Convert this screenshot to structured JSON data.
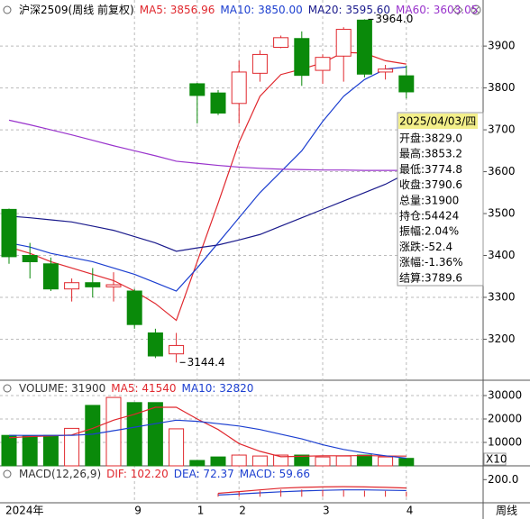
{
  "chart_data": [
    {
      "type": "candlestick",
      "title": "沪深2509(周线 前复权)",
      "categories": [
        "2024年",
        null,
        null,
        null,
        null,
        null,
        "9",
        null,
        null,
        "1",
        null,
        "2",
        null,
        null,
        null,
        "3",
        null,
        null,
        null,
        "4"
      ],
      "x_axis_label": "周线",
      "open": [
        3510,
        3400,
        3380,
        3320,
        3335,
        3325,
        3315,
        3215,
        3165,
        3810,
        3788,
        3763,
        3835,
        3897,
        3918,
        3842,
        3876,
        3962,
        3838,
        3829.0
      ],
      "high": [
        3512,
        3430,
        3395,
        3345,
        3370,
        3360,
        3320,
        3225,
        3215,
        3812,
        3795,
        3865,
        3890,
        3925,
        3935,
        3880,
        3945,
        3964.0,
        3855,
        3853.2
      ],
      "low": [
        3380,
        3345,
        3315,
        3290,
        3300,
        3290,
        3225,
        3155,
        3144.4,
        3715,
        3735,
        3715,
        3815,
        3895,
        3805,
        3810,
        3815,
        3825,
        3820,
        3774.8
      ],
      "close": [
        3397,
        3385,
        3320,
        3335,
        3325,
        3330,
        3235,
        3160,
        3185,
        3782,
        3740,
        3838,
        3880,
        3920,
        3830,
        3873,
        3940,
        3833,
        3845,
        3790.6
      ],
      "up_color": "#e0282e",
      "down_color": "#0a8a0a",
      "series": [
        {
          "name": "MA5",
          "legend_label": "MA5: 3856.96",
          "color": "#e0282e",
          "values": [
            3420,
            3405,
            3385,
            3370,
            3355,
            3340,
            3315,
            3285,
            3245,
            3385,
            3525,
            3670,
            3780,
            3832,
            3845,
            3860,
            3885,
            3883,
            3865,
            3856.96
          ]
        },
        {
          "name": "MA10",
          "legend_label": "MA10: 3850.00",
          "color": "#1c3fd0",
          "values": [
            3430,
            3420,
            3405,
            3395,
            3385,
            3370,
            3355,
            3335,
            3315,
            3370,
            3430,
            3490,
            3550,
            3600,
            3650,
            3720,
            3780,
            3820,
            3845,
            3850.0
          ]
        },
        {
          "name": "MA20",
          "legend_label": "MA20: 3595.60",
          "color": "#1a1a8c",
          "values": [
            3494,
            3490,
            3485,
            3480,
            3470,
            3460,
            3445,
            3430,
            3410,
            3418,
            3425,
            3437,
            3450,
            3470,
            3490,
            3510,
            3530,
            3550,
            3570,
            3595.6
          ]
        },
        {
          "name": "MA60",
          "legend_label": "MA60: 3603.05",
          "color": "#9933cc",
          "values": [
            3723,
            3712,
            3700,
            3688,
            3675,
            3662,
            3650,
            3638,
            3625,
            3620,
            3615,
            3611,
            3608,
            3606,
            3605,
            3604,
            3604,
            3603,
            3603,
            3603.05
          ]
        }
      ],
      "ylim": [
        3102,
        4010
      ],
      "yticks": [
        3200,
        3300,
        3400,
        3500,
        3600,
        3700,
        3800,
        3900
      ],
      "grid": true,
      "annotations": [
        {
          "text": "3964.0",
          "index": 17,
          "value": 3964.0
        },
        {
          "text": "3144.4",
          "index": 8,
          "value": 3144.4
        }
      ],
      "tooltip": {
        "title": "2025/04/03/四",
        "rows": [
          "开盘:3829.0",
          "最高:3853.2",
          "最低:3774.8",
          "收盘:3790.6",
          "总量:31900",
          "持仓:54424",
          "振幅:2.04%",
          "涨跌:-52.4",
          "涨幅:-1.36%",
          "结算:3789.6"
        ]
      }
    },
    {
      "type": "bar",
      "title": "VOLUME: 31900",
      "multiplier_label": "X10",
      "values": [
        13000,
        12700,
        13000,
        16000,
        25800,
        29200,
        27000,
        27000,
        15800,
        2300,
        3800,
        4600,
        4200,
        4600,
        4600,
        3800,
        4200,
        4600,
        3800,
        3190
      ],
      "series": [
        {
          "name": "MA5",
          "legend_label": "MA5: 41540",
          "color": "#e0282e",
          "values": [
            12000,
            12500,
            12800,
            13200,
            16000,
            19500,
            22000,
            25000,
            25000,
            20000,
            15500,
            9500,
            6200,
            3900,
            4100,
            4300,
            4300,
            4400,
            4200,
            4154
          ]
        },
        {
          "name": "MA10",
          "legend_label": "MA10: 32820",
          "color": "#1c3fd0",
          "values": [
            13000,
            13000,
            13000,
            13000,
            13500,
            15000,
            16500,
            18000,
            19500,
            19000,
            18000,
            17000,
            15500,
            13500,
            11500,
            9000,
            7000,
            5500,
            4300,
            3282
          ]
        }
      ],
      "ylim": [
        0,
        35770
      ],
      "yticks": [
        10000,
        20000,
        30000
      ],
      "grid": true
    },
    {
      "type": "macd",
      "title": "MACD(12,26,9)",
      "series": [
        {
          "name": "DIF",
          "legend_label": "DIF: 102.20",
          "color": "#e0282e",
          "values": [
            null,
            null,
            null,
            null,
            null,
            null,
            null,
            null,
            null,
            null,
            40,
            60,
            80,
            100,
            110,
            115,
            118,
            115,
            110,
            102.2
          ]
        },
        {
          "name": "DEA",
          "legend_label": "DEA: 72.37",
          "color": "#1c3fd0",
          "values": [
            null,
            null,
            null,
            null,
            null,
            null,
            null,
            null,
            null,
            null,
            20,
            32,
            45,
            58,
            68,
            75,
            80,
            80,
            76,
            72.37
          ]
        },
        {
          "name": "MACD",
          "legend_label": "MACD: 59.66",
          "color": "#1c3fd0",
          "bar_color": "#e0282e",
          "values": [
            null,
            null,
            null,
            null,
            null,
            null,
            null,
            null,
            null,
            null,
            40,
            56,
            70,
            84,
            84,
            80,
            76,
            70,
            68,
            59.66
          ]
        }
      ],
      "ylim": [
        -60,
        340
      ],
      "yticks": [
        {
          "value": 200,
          "label": "200.0"
        }
      ]
    }
  ]
}
